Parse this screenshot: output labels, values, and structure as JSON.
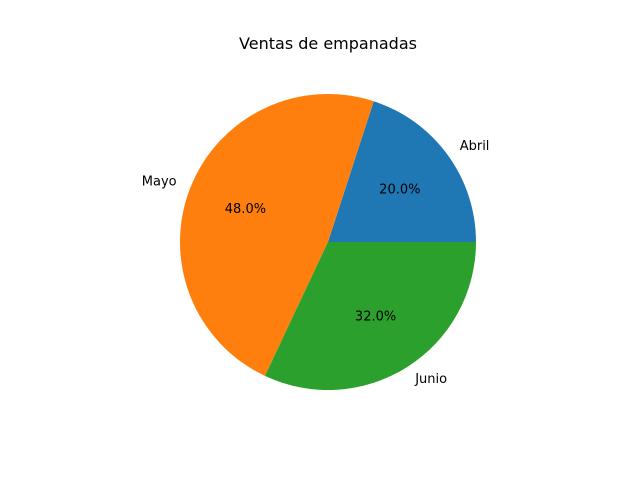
{
  "chart_data": {
    "type": "pie",
    "title": "Ventas de empanadas",
    "labels": [
      "Abril",
      "Mayo",
      "Junio"
    ],
    "values": [
      20,
      48,
      32
    ],
    "percent_labels": [
      "20.0%",
      "48.0%",
      "32.0%"
    ],
    "colors": [
      "#1f77b4",
      "#ff7f0e",
      "#2ca02c"
    ],
    "start_angle_deg": 0,
    "direction": "counterclockwise"
  }
}
